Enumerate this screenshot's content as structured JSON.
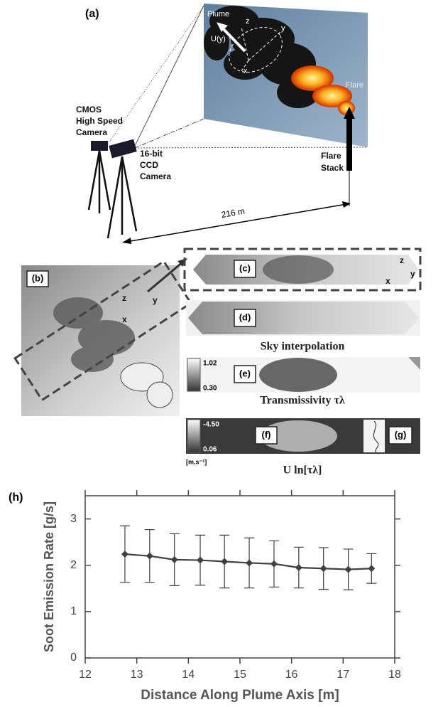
{
  "panel_a": {
    "label": "(a)",
    "plume": "Plume",
    "velocity": "U(y)",
    "axes": [
      "z",
      "y",
      "x"
    ],
    "flare": "Flare",
    "cmos_camera": [
      "CMOS",
      "High Speed",
      "Camera"
    ],
    "ccd_camera": [
      "16-bit",
      "CCD",
      "Camera"
    ],
    "flare_stack": [
      "Flare",
      "Stack"
    ],
    "distance": "216 m"
  },
  "panel_b": {
    "label": "(b)",
    "axes": [
      "z",
      "y",
      "x"
    ]
  },
  "panel_c": {
    "label": "(c)",
    "axes": [
      "z",
      "y",
      "x"
    ]
  },
  "panel_d": {
    "label": "(d)",
    "caption": "Sky interpolation"
  },
  "panel_e": {
    "label": "(e)",
    "scale_max": "1.02",
    "scale_min": "0.30",
    "caption": "Transmissivity τλ"
  },
  "panel_f": {
    "label": "(f)",
    "scale_max": "-4.50",
    "scale_min": "0.06",
    "unit": "[m.s⁻¹]",
    "caption": "U ln[τλ]"
  },
  "panel_g": {
    "label": "(g)"
  },
  "chart_data": {
    "type": "line",
    "panel_label": "(h)",
    "xlabel": "Distance Along Plume Axis [m]",
    "ylabel": "Soot Emission Rate [g/s]",
    "x": [
      12.77,
      13.25,
      13.73,
      14.23,
      14.7,
      15.18,
      15.66,
      16.14,
      16.62,
      17.1,
      17.55
    ],
    "values": [
      2.24,
      2.2,
      2.12,
      2.11,
      2.08,
      2.05,
      2.03,
      1.95,
      1.93,
      1.91,
      1.93
    ],
    "errors": [
      0.61,
      0.57,
      0.56,
      0.54,
      0.57,
      0.54,
      0.5,
      0.44,
      0.45,
      0.44,
      0.32
    ],
    "color": "#404040",
    "xlim": [
      12,
      18
    ],
    "ylim": [
      0,
      3.5
    ],
    "xticks": [
      12,
      13,
      14,
      15,
      16,
      17,
      18
    ],
    "yticks": [
      0,
      1,
      2,
      3
    ]
  }
}
